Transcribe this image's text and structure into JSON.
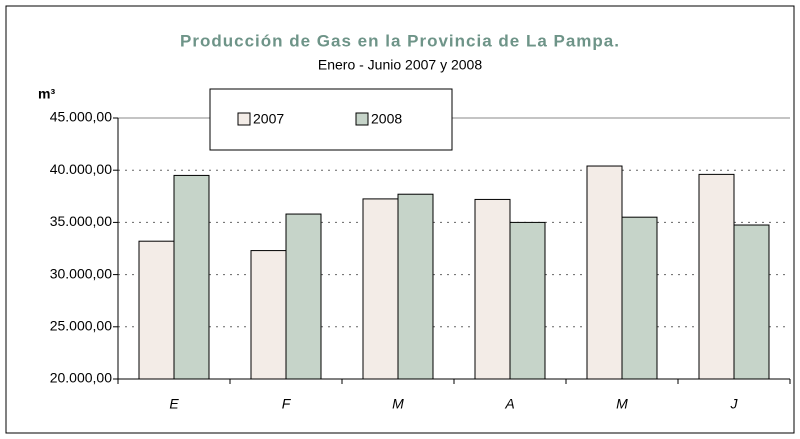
{
  "chart_data": {
    "type": "bar",
    "title": "Producción de Gas en la Provincia de La Pampa.",
    "subtitle": "Enero - Junio 2007 y 2008",
    "y_label": "m³",
    "categories": [
      "E",
      "F",
      "M",
      "A",
      "M",
      "J"
    ],
    "series": [
      {
        "name": "2007",
        "color": "#f3ece7",
        "values": [
          33200,
          32300,
          37250,
          37200,
          40400,
          39600
        ]
      },
      {
        "name": "2008",
        "color": "#c6d4c9",
        "values": [
          39500,
          35800,
          37700,
          35000,
          35500,
          34750
        ]
      }
    ],
    "ylim": [
      20000,
      45000
    ],
    "yticks": [
      {
        "value": 20000,
        "label": "20.000,00"
      },
      {
        "value": 25000,
        "label": "25.000,00"
      },
      {
        "value": 30000,
        "label": "30.000,00"
      },
      {
        "value": 35000,
        "label": "35.000,00"
      },
      {
        "value": 40000,
        "label": "40.000,00"
      },
      {
        "value": 45000,
        "label": "45.000,00"
      }
    ],
    "grid": true
  }
}
